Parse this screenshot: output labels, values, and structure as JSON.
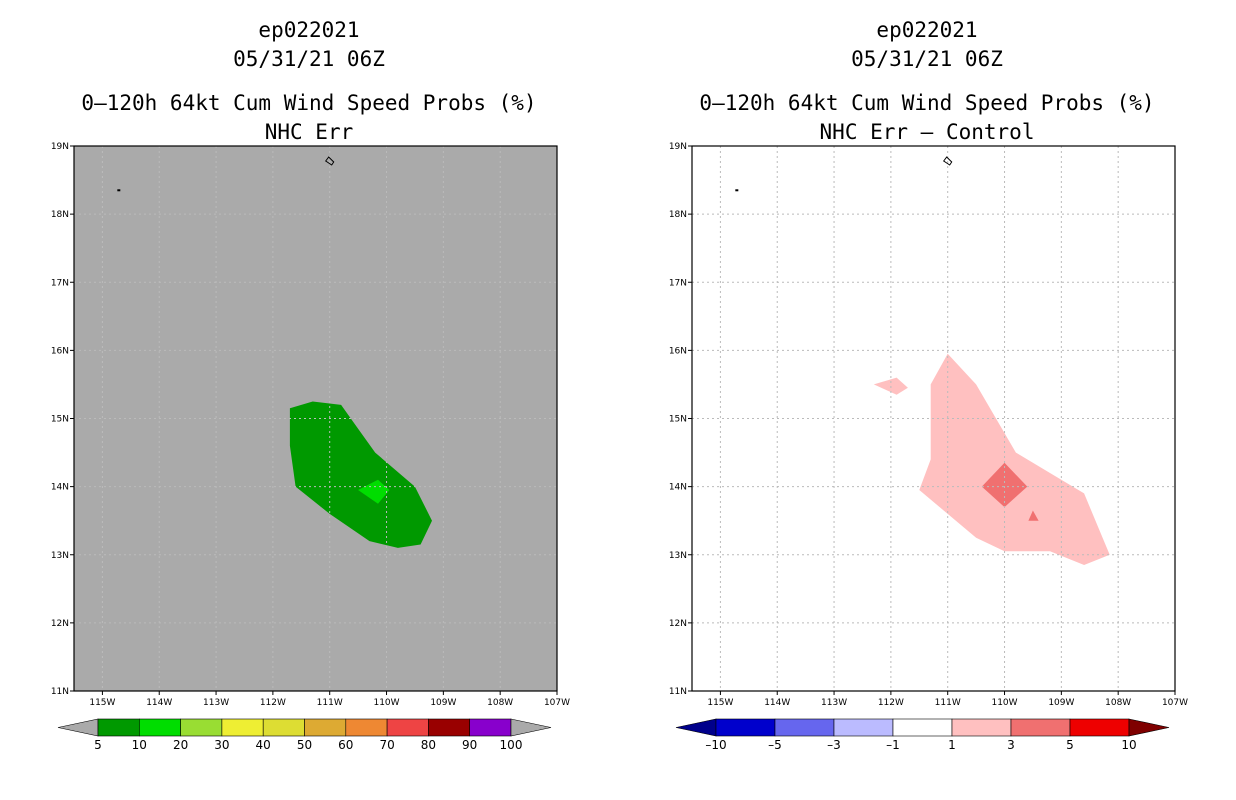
{
  "panels": [
    {
      "storm_id": "ep022021",
      "datetime": "05/31/21 06Z",
      "product": "0–120h 64kt Cum Wind Speed Probs (%)",
      "subtitle": "NHC Err",
      "background": "#aaaaaa",
      "colorbar": {
        "labels": [
          "5",
          "10",
          "20",
          "30",
          "40",
          "50",
          "60",
          "70",
          "80",
          "90",
          "100"
        ],
        "colors": [
          "#009900",
          "#00dd00",
          "#99dd33",
          "#eeee33",
          "#dddd33",
          "#ddaa33",
          "#ee8833",
          "#ee4444",
          "#990000",
          "#8800cc"
        ],
        "low_arrow": "#aaaaaa",
        "high_arrow": "#aaaaaa"
      },
      "contours": [
        {
          "level": "5",
          "color": "#009900",
          "points": [
            [
              -111.7,
              15.15
            ],
            [
              -111.3,
              15.25
            ],
            [
              -110.8,
              15.2
            ],
            [
              -110.5,
              14.85
            ],
            [
              -110.2,
              14.5
            ],
            [
              -109.5,
              14.0
            ],
            [
              -109.2,
              13.5
            ],
            [
              -109.4,
              13.15
            ],
            [
              -109.8,
              13.1
            ],
            [
              -110.3,
              13.2
            ],
            [
              -111.0,
              13.6
            ],
            [
              -111.6,
              14.0
            ],
            [
              -111.7,
              14.6
            ]
          ]
        },
        {
          "level": "10",
          "color": "#00dd00",
          "points": [
            [
              -110.5,
              13.95
            ],
            [
              -110.15,
              14.1
            ],
            [
              -109.95,
              13.95
            ],
            [
              -110.15,
              13.75
            ]
          ]
        }
      ],
      "island_marks": true
    },
    {
      "storm_id": "ep022021",
      "datetime": "05/31/21 06Z",
      "product": "0–120h 64kt Cum Wind Speed Probs (%)",
      "subtitle": "NHC Err – Control",
      "background": "#ffffff",
      "colorbar": {
        "labels": [
          "–10",
          "–5",
          "–3",
          "–1",
          "1",
          "3",
          "5",
          "10"
        ],
        "colors": [
          "#0000cc",
          "#6666ee",
          "#bbbbff",
          "#ffffff",
          "#ffc0c0",
          "#f07070",
          "#ee0000"
        ],
        "low_arrow": "#00008b",
        "high_arrow": "#7f0000"
      },
      "contours": [
        {
          "level": "1",
          "color": "#ffc0c0",
          "points": [
            [
              -111.3,
              15.5
            ],
            [
              -111.0,
              15.95
            ],
            [
              -110.5,
              15.5
            ],
            [
              -109.8,
              14.5
            ],
            [
              -109.2,
              14.2
            ],
            [
              -108.6,
              13.9
            ],
            [
              -108.35,
              13.4
            ],
            [
              -108.15,
              13.0
            ],
            [
              -108.6,
              12.85
            ],
            [
              -109.2,
              13.05
            ],
            [
              -110.0,
              13.05
            ],
            [
              -110.5,
              13.25
            ],
            [
              -111.0,
              13.6
            ],
            [
              -111.5,
              13.95
            ],
            [
              -111.3,
              14.4
            ]
          ]
        },
        {
          "level": "1",
          "color": "#ffc0c0",
          "points": [
            [
              -112.3,
              15.5
            ],
            [
              -111.9,
              15.6
            ],
            [
              -111.7,
              15.45
            ],
            [
              -111.9,
              15.35
            ]
          ]
        },
        {
          "level": "3",
          "color": "#f07070",
          "points": [
            [
              -110.0,
              14.35
            ],
            [
              -109.6,
              14.0
            ],
            [
              -110.0,
              13.7
            ],
            [
              -110.4,
              14.0
            ]
          ]
        },
        {
          "level": "3",
          "color": "#f07070",
          "points": [
            [
              -109.5,
              13.65
            ],
            [
              -109.4,
              13.5
            ],
            [
              -109.58,
              13.5
            ]
          ]
        }
      ],
      "island_marks": true
    }
  ],
  "axes": {
    "lon_min": -115.5,
    "lon_max": -107,
    "lat_min": 11,
    "lat_max": 19,
    "x_ticks": [
      {
        "value": -115,
        "label": "115W"
      },
      {
        "value": -114,
        "label": "114W"
      },
      {
        "value": -113,
        "label": "113W"
      },
      {
        "value": -112,
        "label": "112W"
      },
      {
        "value": -111,
        "label": "111W"
      },
      {
        "value": -110,
        "label": "110W"
      },
      {
        "value": -109,
        "label": "109W"
      },
      {
        "value": -108,
        "label": "108W"
      },
      {
        "value": -107,
        "label": "107W"
      }
    ],
    "y_ticks": [
      {
        "value": 11,
        "label": "11N"
      },
      {
        "value": 12,
        "label": "12N"
      },
      {
        "value": 13,
        "label": "13N"
      },
      {
        "value": 14,
        "label": "14N"
      },
      {
        "value": 15,
        "label": "15N"
      },
      {
        "value": 16,
        "label": "16N"
      },
      {
        "value": 17,
        "label": "17N"
      },
      {
        "value": 18,
        "label": "18N"
      },
      {
        "value": 19,
        "label": "19N"
      }
    ]
  }
}
